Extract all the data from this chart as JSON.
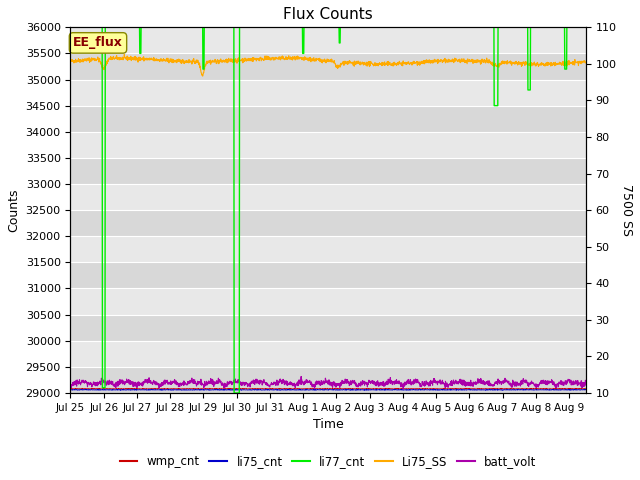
{
  "title": "Flux Counts",
  "xlabel": "Time",
  "ylabel_left": "Counts",
  "ylabel_right": "7500 SS",
  "ylim_left": [
    29000,
    36000
  ],
  "ylim_right": [
    10,
    110
  ],
  "background_color": "#e8e8e8",
  "plot_bg_color": "#e8e8e8",
  "annotation_text": "EE_flux",
  "annotation_box_color": "#ffff99",
  "annotation_text_color": "#880000",
  "xtick_labels": [
    "Jul 25",
    "Jul 26",
    "Jul 27",
    "Jul 28",
    "Jul 29",
    "Jul 30",
    "Jul 31",
    "Aug 1",
    "Aug 2",
    "Aug 3",
    "Aug 4",
    "Aug 5",
    "Aug 6",
    "Aug 7",
    "Aug 8",
    "Aug 9"
  ],
  "colors": {
    "wmp_cnt": "#cc0000",
    "li75_cnt": "#0000cc",
    "li77_cnt": "#00ee00",
    "Li75_SS": "#ffaa00",
    "batt_volt": "#aa00aa"
  },
  "legend_labels": [
    "wmp_cnt",
    "li75_cnt",
    "li77_cnt",
    "Li75_SS",
    "batt_volt"
  ]
}
